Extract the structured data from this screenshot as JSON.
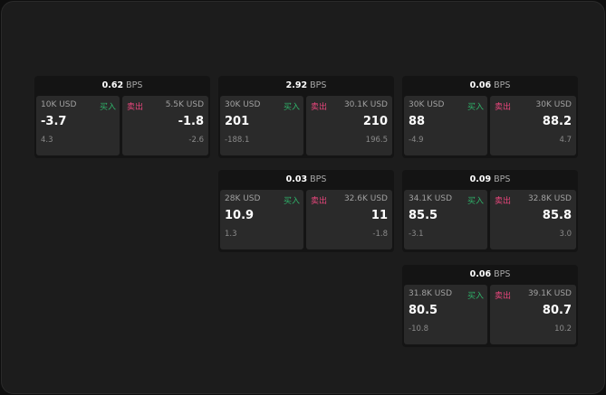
{
  "labels": {
    "buy": "买入",
    "sell": "卖出",
    "unit": "BPS"
  },
  "colors": {
    "buy": "#2fb36a",
    "sell": "#e8467c",
    "background": "#1c1c1c"
  },
  "quotes": [
    {
      "spread": "0.62",
      "buy": {
        "qty": "10K USD",
        "price": "-3.7",
        "change": "4.3"
      },
      "sell": {
        "qty": "5.5K USD",
        "price": "-1.8",
        "change": "-2.6"
      }
    },
    {
      "spread": "2.92",
      "buy": {
        "qty": "30K USD",
        "price": "201",
        "change": "-188.1"
      },
      "sell": {
        "qty": "30.1K USD",
        "price": "210",
        "change": "196.5"
      }
    },
    {
      "spread": "0.06",
      "buy": {
        "qty": "30K USD",
        "price": "88",
        "change": "-4.9"
      },
      "sell": {
        "qty": "30K USD",
        "price": "88.2",
        "change": "4.7"
      }
    },
    {
      "spread": "0.03",
      "buy": {
        "qty": "28K USD",
        "price": "10.9",
        "change": "1.3"
      },
      "sell": {
        "qty": "32.6K USD",
        "price": "11",
        "change": "-1.8"
      }
    },
    {
      "spread": "0.09",
      "buy": {
        "qty": "34.1K USD",
        "price": "85.5",
        "change": "-3.1"
      },
      "sell": {
        "qty": "32.8K USD",
        "price": "85.8",
        "change": "3.0"
      }
    },
    {
      "spread": "0.06",
      "buy": {
        "qty": "31.8K USD",
        "price": "80.5",
        "change": "-10.8"
      },
      "sell": {
        "qty": "39.1K USD",
        "price": "80.7",
        "change": "10.2"
      }
    }
  ]
}
